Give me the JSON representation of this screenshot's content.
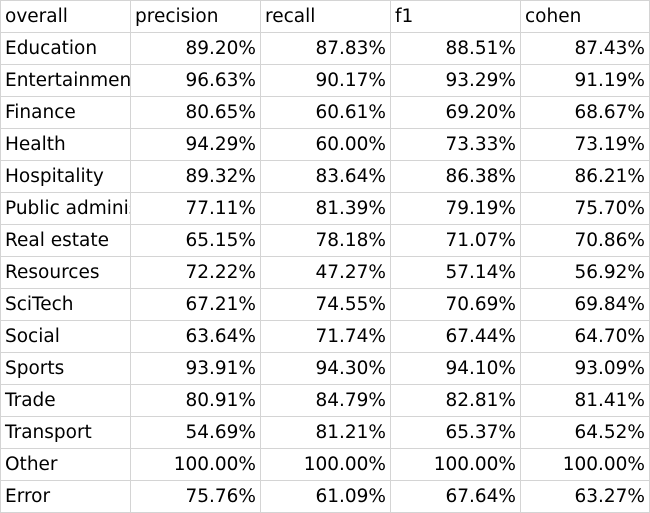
{
  "header": [
    "overall",
    "precision",
    "recall",
    "f1",
    "cohen"
  ],
  "rows": [
    {
      "label": "Education",
      "values": [
        "89.20%",
        "87.83%",
        "88.51%",
        "87.43%"
      ]
    },
    {
      "label": "Entertainment",
      "values": [
        "96.63%",
        "90.17%",
        "93.29%",
        "91.19%"
      ]
    },
    {
      "label": "Finance",
      "values": [
        "80.65%",
        "60.61%",
        "69.20%",
        "68.67%"
      ]
    },
    {
      "label": "Health",
      "values": [
        "94.29%",
        "60.00%",
        "73.33%",
        "73.19%"
      ]
    },
    {
      "label": "Hospitality",
      "values": [
        "89.32%",
        "83.64%",
        "86.38%",
        "86.21%"
      ]
    },
    {
      "label": "Public administration",
      "values": [
        "77.11%",
        "81.39%",
        "79.19%",
        "75.70%"
      ]
    },
    {
      "label": "Real estate",
      "values": [
        "65.15%",
        "78.18%",
        "71.07%",
        "70.86%"
      ]
    },
    {
      "label": "Resources",
      "values": [
        "72.22%",
        "47.27%",
        "57.14%",
        "56.92%"
      ]
    },
    {
      "label": "SciTech",
      "values": [
        "67.21%",
        "74.55%",
        "70.69%",
        "69.84%"
      ]
    },
    {
      "label": "Social",
      "values": [
        "63.64%",
        "71.74%",
        "67.44%",
        "64.70%"
      ]
    },
    {
      "label": "Sports",
      "values": [
        "93.91%",
        "94.30%",
        "94.10%",
        "93.09%"
      ]
    },
    {
      "label": "Trade",
      "values": [
        "80.91%",
        "84.79%",
        "82.81%",
        "81.41%"
      ]
    },
    {
      "label": "Transport",
      "values": [
        "54.69%",
        "81.21%",
        "65.37%",
        "64.52%"
      ]
    },
    {
      "label": "Other",
      "values": [
        "100.00%",
        "100.00%",
        "100.00%",
        "100.00%"
      ]
    },
    {
      "label": "Error",
      "values": [
        "75.76%",
        "61.09%",
        "67.64%",
        "63.27%"
      ]
    }
  ]
}
